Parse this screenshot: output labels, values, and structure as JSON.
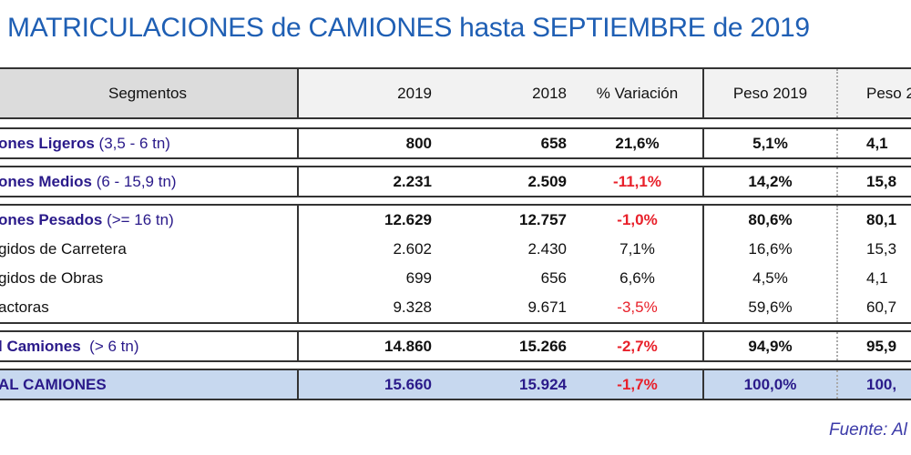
{
  "title": "MATRICULACIONES de CAMIONES hasta SEPTIEMBRE de 2019",
  "header": {
    "segmentos": "Segmentos",
    "y2019": "2019",
    "y2018": "2018",
    "variacion": "% Variación",
    "peso2019": "Peso 2019",
    "peso2018": "Peso 2"
  },
  "rows": {
    "ligeros": {
      "name": "ones Ligeros",
      "range": "(3,5 - 6 tn)",
      "v2019": "800",
      "v2018": "658",
      "var": "21,6%",
      "p2019": "5,1%",
      "p2018": "4,1"
    },
    "medios": {
      "name": "ones Medios",
      "range": "(6 - 15,9 tn)",
      "v2019": "2.231",
      "v2018": "2.509",
      "var": "-11,1%",
      "p2019": "14,2%",
      "p2018": "15,8"
    },
    "pesados": {
      "name": "ones Pesados",
      "range": "(>= 16 tn)",
      "v2019": "12.629",
      "v2018": "12.757",
      "var": "-1,0%",
      "p2019": "80,6%",
      "p2018": "80,1"
    },
    "carretera": {
      "name": "gidos de Carretera",
      "v2019": "2.602",
      "v2018": "2.430",
      "var": "7,1%",
      "p2019": "16,6%",
      "p2018": "15,3"
    },
    "obras": {
      "name": "gidos de Obras",
      "v2019": "699",
      "v2018": "656",
      "var": "6,6%",
      "p2019": "4,5%",
      "p2018": "4,1"
    },
    "tractoras": {
      "name": "actoras",
      "v2019": "9.328",
      "v2018": "9.671",
      "var": "-3,5%",
      "p2019": "59,6%",
      "p2018": "60,7"
    },
    "total6": {
      "name": "l Camiones",
      "range": "(> 6 tn)",
      "v2019": "14.860",
      "v2018": "15.266",
      "var": "-2,7%",
      "p2019": "94,9%",
      "p2018": "95,9"
    },
    "total": {
      "name": "AL CAMIONES",
      "v2019": "15.660",
      "v2018": "15.924",
      "var": "-1,7%",
      "p2019": "100,0%",
      "p2018": "100,"
    }
  },
  "source": "Fuente: Al",
  "colors": {
    "title": "#1f5fb4",
    "negative": "#e8202a",
    "label": "#2a1a8a",
    "total_bg": "#c7d8ef",
    "header_seg_bg": "#dcdcdc",
    "header_bg": "#f2f2f2"
  }
}
